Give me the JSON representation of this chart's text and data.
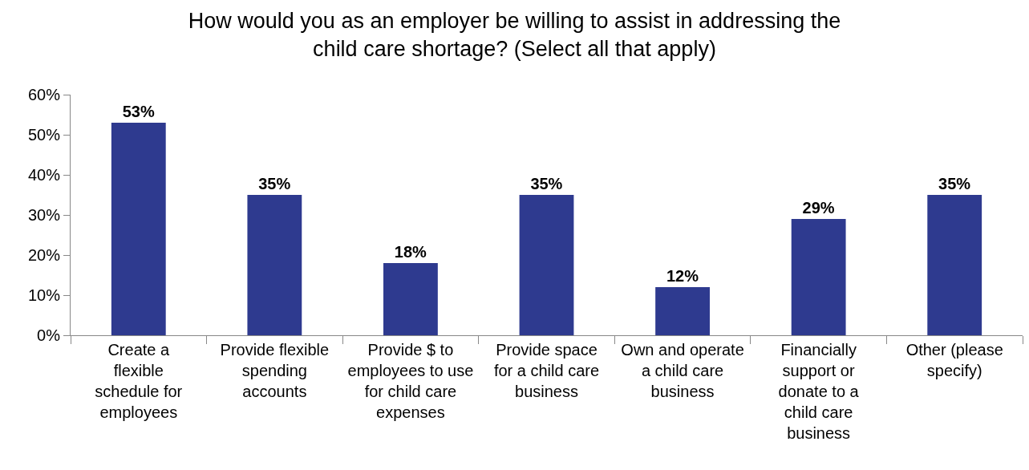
{
  "chart_data": {
    "type": "bar",
    "title": "How would you as an employer be willing to assist in addressing the child care shortage? (Select all that apply)",
    "categories": [
      "Create a flexible schedule for employees",
      "Provide flexible spending accounts",
      "Provide $ to employees to use for child care expenses",
      "Provide space for a child care business",
      "Own and operate a child care business",
      "Financially support or donate to a child care business",
      "Other (please specify)"
    ],
    "values": [
      53,
      35,
      18,
      35,
      12,
      29,
      35
    ],
    "value_labels": [
      "53%",
      "35%",
      "18%",
      "35%",
      "12%",
      "29%",
      "35%"
    ],
    "color": "#2e3a8f",
    "ylim": [
      0,
      60
    ],
    "yticks": [
      {
        "value": 0,
        "label": "0%"
      },
      {
        "value": 10,
        "label": "10%"
      },
      {
        "value": 20,
        "label": "20%"
      },
      {
        "value": 30,
        "label": "30%"
      },
      {
        "value": 40,
        "label": "40%"
      },
      {
        "value": 50,
        "label": "50%"
      },
      {
        "value": 60,
        "label": "60%"
      }
    ]
  }
}
